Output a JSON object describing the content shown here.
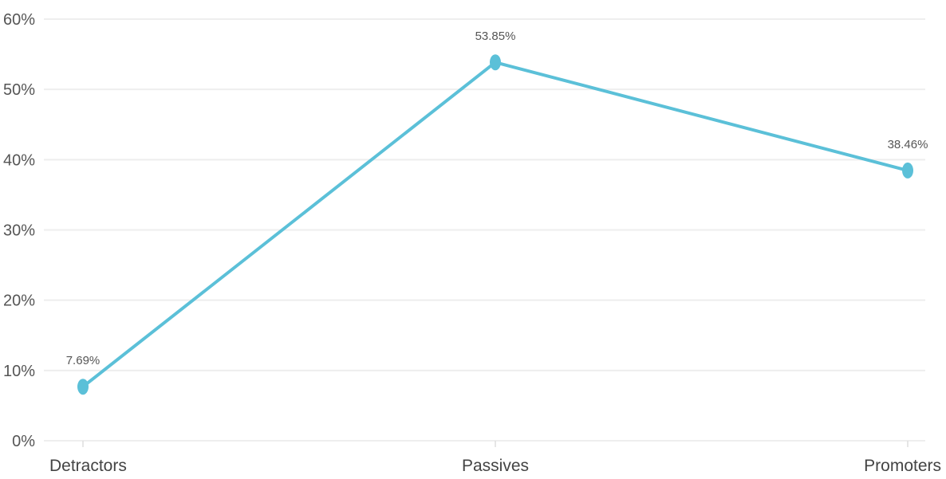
{
  "chart_data": {
    "type": "line",
    "title": "",
    "xlabel": "",
    "ylabel": "",
    "categories": [
      "Detractors",
      "Passives",
      "Promoters"
    ],
    "series": [
      {
        "values": [
          7.69,
          53.85,
          38.46
        ]
      }
    ],
    "data_labels": [
      "7.69%",
      "53.85%",
      "38.46%"
    ],
    "ylim": [
      0,
      60
    ],
    "yticks": [
      0,
      10,
      20,
      30,
      40,
      50,
      60
    ],
    "ytick_labels": [
      "0%",
      "10%",
      "20%",
      "30%",
      "40%",
      "50%",
      "60%"
    ],
    "grid": true,
    "legend": "none",
    "line_color": "#5bc0d8"
  }
}
